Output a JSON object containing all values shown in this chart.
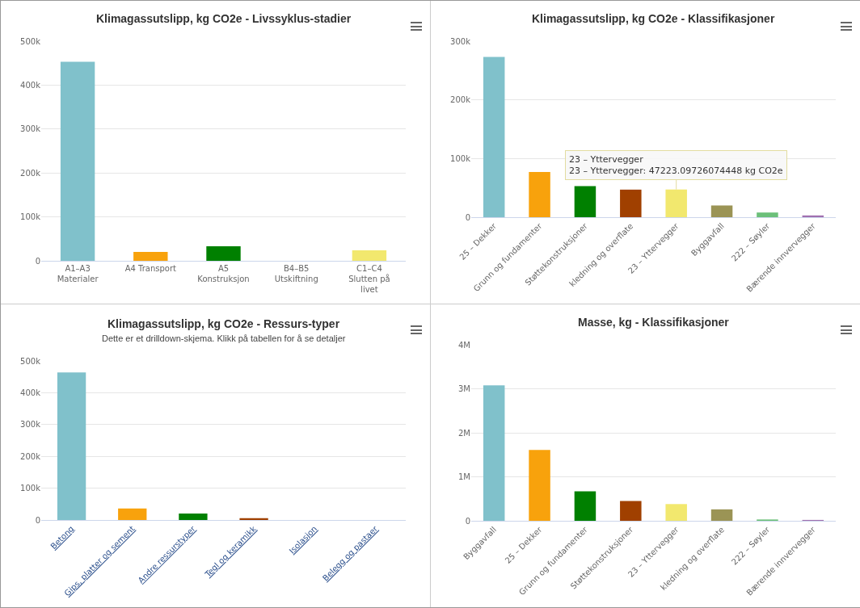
{
  "chart_data": [
    {
      "type": "bar",
      "title": "Klimagassutslipp, kg CO2e - Livssyklus-stadier",
      "categories": [
        "A1–A3 Materialer",
        "A4 Transport",
        "A5 Konstruksjon",
        "B4–B5 Utskiftning",
        "C1–C4 Slutten på livet"
      ],
      "values": [
        453000,
        20000,
        33000,
        0,
        24000
      ],
      "colors": [
        "#80c1cb",
        "#f8a20c",
        "#008000",
        "#a04000",
        "#f2e86e"
      ],
      "ylim": [
        0,
        500000
      ],
      "yticks": [
        {
          "value": 0,
          "label": "0"
        },
        {
          "value": 100000,
          "label": "100k"
        },
        {
          "value": 200000,
          "label": "200k"
        },
        {
          "value": 300000,
          "label": "300k"
        },
        {
          "value": 400000,
          "label": "400k"
        },
        {
          "value": 500000,
          "label": "500k"
        }
      ],
      "grid": "y"
    },
    {
      "type": "bar",
      "title": "Klimagassutslipp, kg CO2e - Klassifikasjoner",
      "categories": [
        "25 – Dekker",
        "Grunn og fundamenter",
        "Støttekonstruksjoner",
        "kledning og overflate",
        "23 – Yttervegger",
        "Byggavfall",
        "222 – Søyler",
        "Bærende innvervegger"
      ],
      "values": [
        273000,
        77000,
        53000,
        47000,
        47223.09726074448,
        20000,
        8000,
        3000
      ],
      "colors": [
        "#80c1cb",
        "#f8a20c",
        "#008000",
        "#a04000",
        "#f2e86e",
        "#9b9455",
        "#6cc07a",
        "#a070b0"
      ],
      "ylim": [
        0,
        300000
      ],
      "yticks": [
        {
          "value": 0,
          "label": "0"
        },
        {
          "value": 100000,
          "label": "100k"
        },
        {
          "value": 200000,
          "label": "200k"
        },
        {
          "value": 300000,
          "label": "300k"
        }
      ],
      "grid": "y",
      "annotations": [
        {
          "text": "23 – Yttervegger\n23 – Yttervegger: 47223.09726074448 kg CO2e",
          "x": "23 – Yttervegger",
          "y": 47223.09726074448
        }
      ]
    },
    {
      "type": "bar",
      "title": "Klimagassutslipp, kg CO2e - Ressurs-typer",
      "subtitle": "Dette er et drilldown-skjema. Klikk på tabellen for å se detaljer",
      "categories": [
        "Betong",
        "Gips, platter og sement",
        "Andre ressurstyper",
        "Tegl og keramikk",
        "Isolasjon",
        "Belegg og pastaer"
      ],
      "values": [
        464000,
        36000,
        20000,
        6000,
        0,
        0
      ],
      "colors": [
        "#80c1cb",
        "#f8a20c",
        "#008000",
        "#a04000",
        "#f2e86e",
        "#9b9455"
      ],
      "ylim": [
        0,
        500000
      ],
      "yticks": [
        {
          "value": 0,
          "label": "0"
        },
        {
          "value": 100000,
          "label": "100k"
        },
        {
          "value": 200000,
          "label": "200k"
        },
        {
          "value": 300000,
          "label": "300k"
        },
        {
          "value": 400000,
          "label": "400k"
        },
        {
          "value": 500000,
          "label": "500k"
        }
      ],
      "grid": "y"
    },
    {
      "type": "bar",
      "title": "Masse, kg - Klassifikasjoner",
      "categories": [
        "Byggavfall",
        "25 – Dekker",
        "Grunn og fundamenter",
        "Støttekonstruksjoner",
        "23 – Yttervegger",
        "kledning og overflate",
        "222 – Søyler",
        "Bærende innvervegger"
      ],
      "values": [
        3080000,
        1610000,
        670000,
        450000,
        380000,
        260000,
        30000,
        20000
      ],
      "colors": [
        "#80c1cb",
        "#f8a20c",
        "#008000",
        "#a04000",
        "#f2e86e",
        "#9b9455",
        "#6cc07a",
        "#a070b0"
      ],
      "ylim": [
        0,
        4000000
      ],
      "yticks": [
        {
          "value": 0,
          "label": "0"
        },
        {
          "value": 1000000,
          "label": "1M"
        },
        {
          "value": 2000000,
          "label": "2M"
        },
        {
          "value": 3000000,
          "label": "3M"
        },
        {
          "value": 4000000,
          "label": "4M"
        }
      ],
      "grid": "y"
    }
  ]
}
